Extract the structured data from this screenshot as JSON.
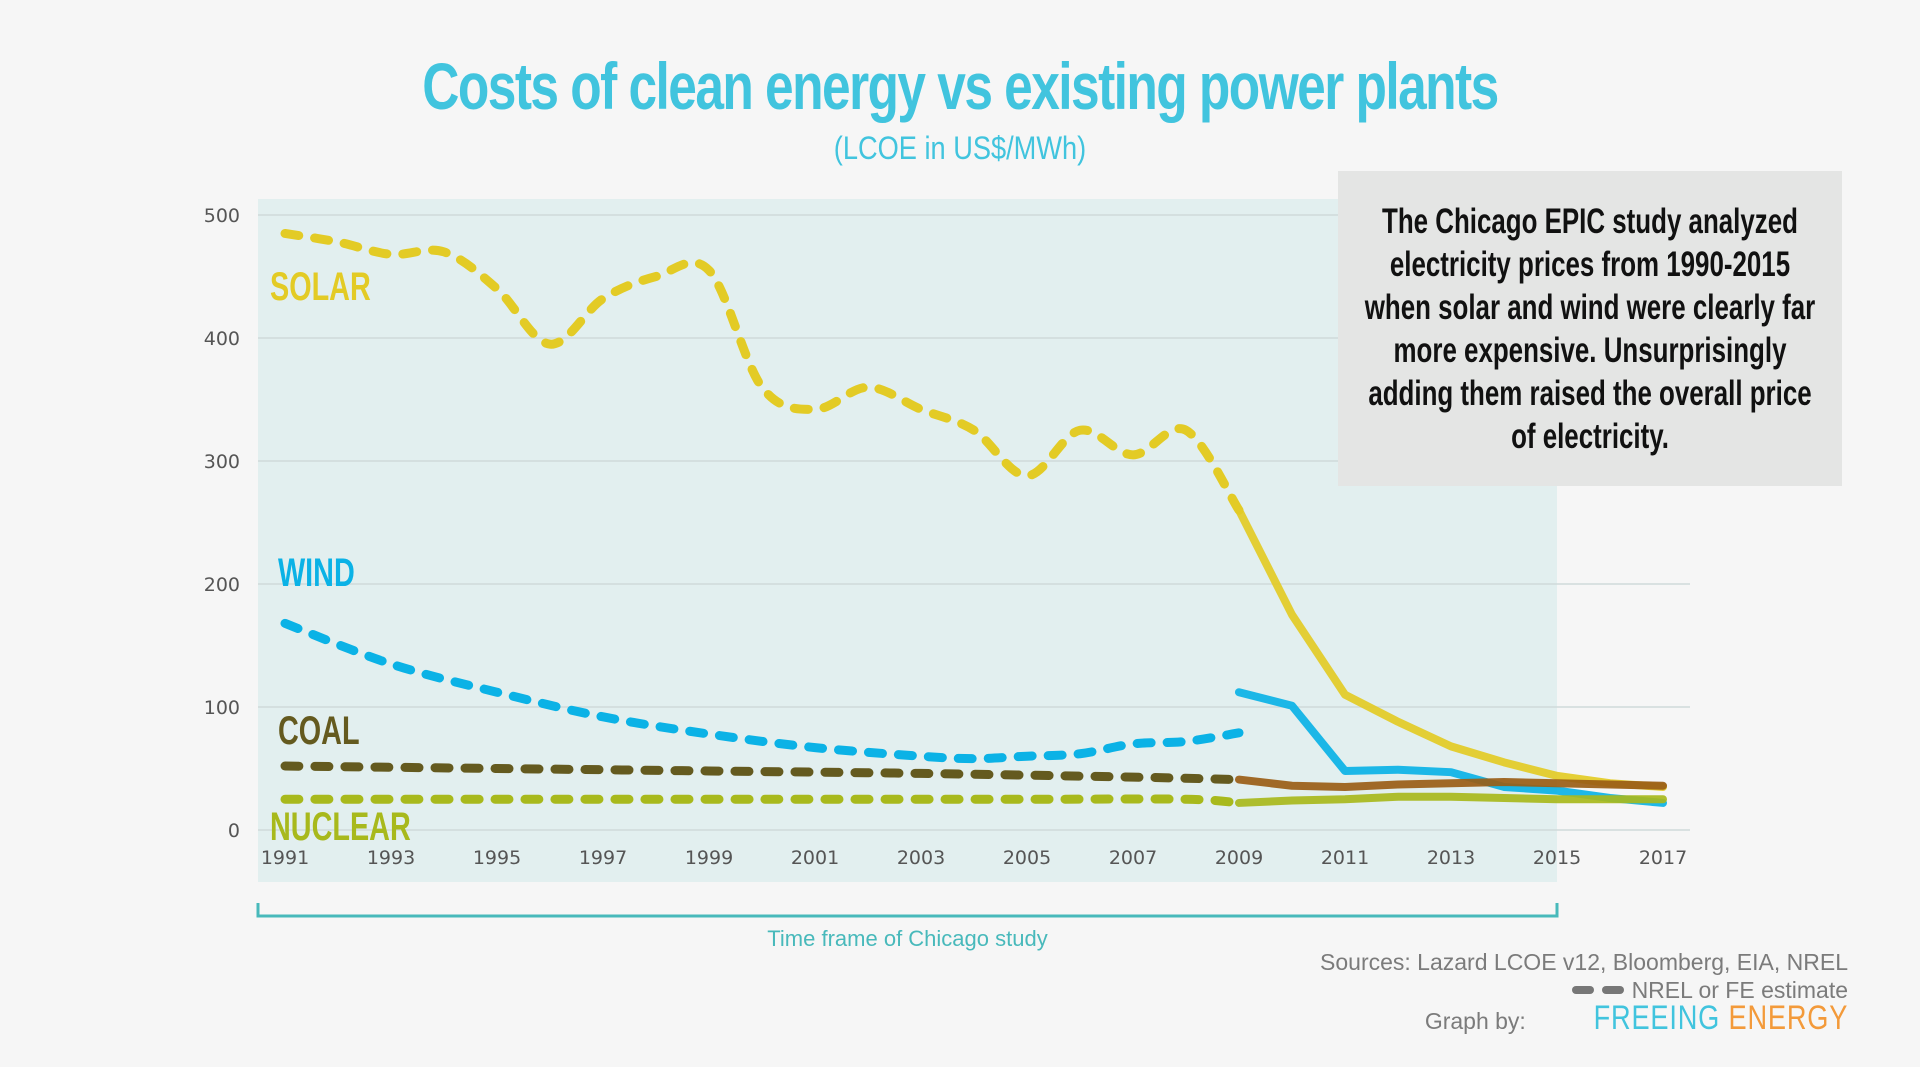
{
  "header": {
    "title": "Costs of clean energy vs existing power plants",
    "subtitle": "(LCOE in US$/MWh)"
  },
  "annotation": {
    "text": "The Chicago EPIC study analyzed electricity prices from 1990-2015 when solar and wind were clearly far more expensive. Unsurprisingly adding them raised the overall price of electricity."
  },
  "timeframe_label": "Time frame of Chicago study",
  "footer": {
    "sources": "Sources: Lazard LCOE v12, Bloomberg, EIA, NREL",
    "estimate_legend": "NREL or FE estimate",
    "graph_by": "Graph by:",
    "brand_part1": "FREEING",
    "brand_part2": "ENERGY"
  },
  "colors": {
    "title": "#41c4de",
    "solar": "#e3cb25",
    "wind": "#0bb2e6",
    "coal_estimate": "#645a1f",
    "coal": "#9a5d16",
    "nuclear": "#a8b91c",
    "shade": "#e2efef",
    "bracket": "#48b9bb"
  },
  "chart_data": {
    "type": "line",
    "title": "Costs of clean energy vs existing power plants",
    "subtitle": "(LCOE in US$/MWh)",
    "xlabel": "",
    "ylabel": "",
    "xlim": [
      1991,
      2017
    ],
    "ylim": [
      0,
      500
    ],
    "yticks": [
      0,
      100,
      200,
      300,
      400,
      500
    ],
    "xticks": [
      "1991",
      "1993",
      "1995",
      "1997",
      "1999",
      "2001",
      "2003",
      "2005",
      "2007",
      "2009",
      "2011",
      "2013",
      "2015",
      "2017"
    ],
    "grid": true,
    "shaded_region": {
      "from": 1991,
      "to": 2015,
      "label": "Time frame of Chicago study"
    },
    "legend": "inline labels left",
    "series": [
      {
        "name": "SOLAR",
        "color": "#e3cb25",
        "estimate": {
          "x": [
            1991,
            1992,
            1993,
            1994,
            1995,
            1996,
            1997,
            1998,
            1999,
            2000,
            2001,
            2002,
            2003,
            2004,
            2005,
            2006,
            2007,
            2008,
            2009
          ],
          "y": [
            485,
            478,
            468,
            470,
            440,
            395,
            432,
            450,
            455,
            360,
            342,
            360,
            342,
            325,
            288,
            325,
            305,
            325,
            260
          ]
        },
        "actual": {
          "x": [
            2009,
            2010,
            2011,
            2012,
            2013,
            2014,
            2015,
            2016,
            2017
          ],
          "y": [
            260,
            175,
            110,
            88,
            68,
            55,
            44,
            38,
            35
          ]
        }
      },
      {
        "name": "WIND",
        "color": "#0bb2e6",
        "estimate": {
          "x": [
            1991,
            1993,
            1995,
            1997,
            1999,
            2001,
            2003,
            2004,
            2005,
            2006,
            2007,
            2008,
            2009
          ],
          "y": [
            168,
            135,
            112,
            92,
            78,
            67,
            60,
            58,
            60,
            62,
            70,
            72,
            79
          ]
        },
        "actual": {
          "x": [
            2009,
            2010,
            2011,
            2012,
            2013,
            2014,
            2015,
            2016,
            2017
          ],
          "y": [
            112,
            101,
            48,
            49,
            47,
            35,
            32,
            26,
            22
          ]
        }
      },
      {
        "name": "COAL",
        "color": "#9a5d16",
        "estimate_color": "#645a1f",
        "estimate": {
          "x": [
            1991,
            1995,
            1999,
            2003,
            2007,
            2009
          ],
          "y": [
            52,
            50,
            48,
            46,
            43,
            41
          ]
        },
        "actual": {
          "x": [
            2009,
            2010,
            2011,
            2012,
            2013,
            2014,
            2015,
            2016,
            2017
          ],
          "y": [
            41,
            36,
            35,
            37,
            38,
            39,
            38,
            37,
            36
          ]
        }
      },
      {
        "name": "NUCLEAR",
        "color": "#a8b91c",
        "estimate": {
          "x": [
            1991,
            1995,
            2000,
            2005,
            2008,
            2009
          ],
          "y": [
            25,
            25,
            25,
            25,
            25,
            22
          ]
        },
        "actual": {
          "x": [
            2009,
            2010,
            2011,
            2012,
            2013,
            2014,
            2015,
            2016,
            2017
          ],
          "y": [
            22,
            24,
            25,
            27,
            27,
            26,
            25,
            25,
            25
          ]
        }
      }
    ],
    "annotation": "The Chicago EPIC study analyzed electricity prices from 1990-2015 when solar and wind were clearly far more expensive. Unsurprisingly adding them raised the overall price of electricity.",
    "sources": "Sources: Lazard LCOE v12, Bloomberg, EIA, NREL",
    "dashed_meaning": "NREL or FE estimate"
  }
}
